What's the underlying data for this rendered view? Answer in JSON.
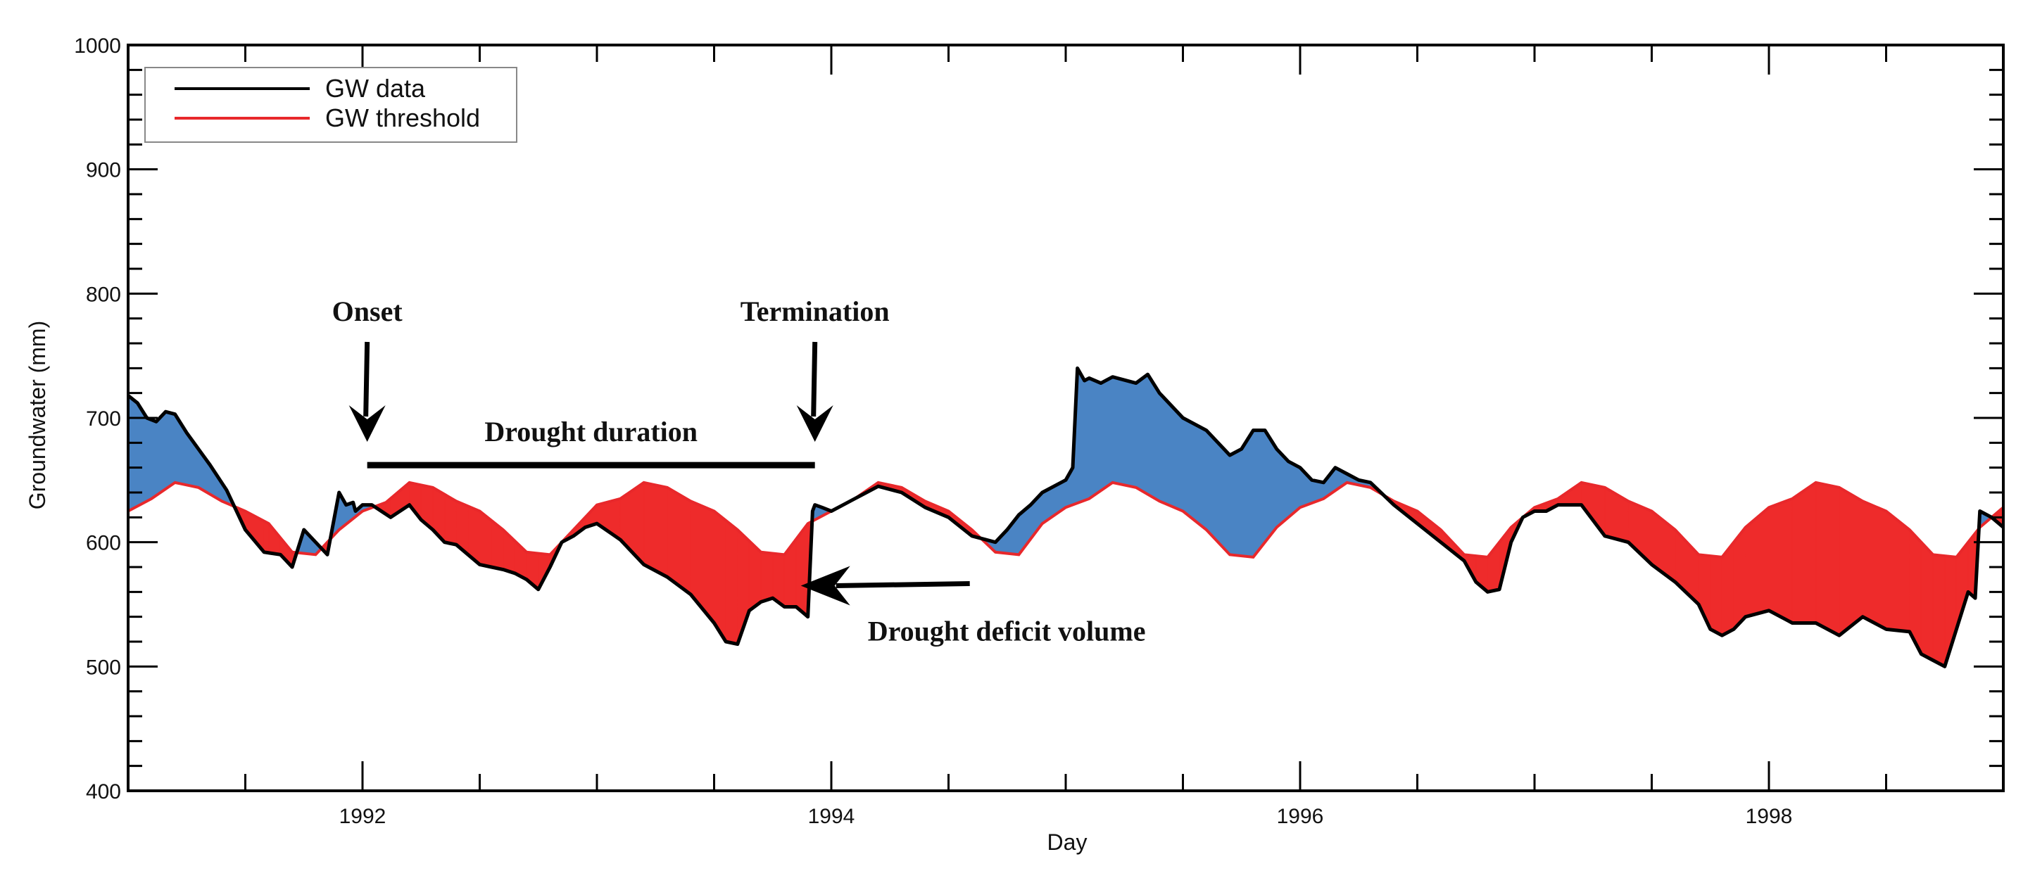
{
  "chart_data": {
    "type": "area",
    "title": "",
    "xlabel": "Day",
    "ylabel": "Groundwater (mm)",
    "xlim": [
      1991.0,
      1999.0
    ],
    "ylim": [
      400,
      1000
    ],
    "yticks": [
      400,
      500,
      600,
      700,
      800,
      900,
      1000
    ],
    "ytick_labels": [
      "400",
      "500",
      "600",
      "700",
      "800",
      "900",
      "1000"
    ],
    "xticks": [
      1992,
      1994,
      1996,
      1998
    ],
    "xtick_labels": [
      "1992",
      "1994",
      "1996",
      "1998"
    ],
    "legend": {
      "position": "top-left",
      "entries": [
        {
          "label": "GW data",
          "color": "#000000"
        },
        {
          "label": "GW threshold",
          "color": "#e8282b"
        }
      ]
    },
    "colors": {
      "data_line": "#000000",
      "threshold_line": "#e8282b",
      "surplus_fill": "#4a84c4",
      "deficit_fill": "#ee2b2b"
    },
    "annotations": {
      "onset": {
        "label": "Onset",
        "x": 1992.02
      },
      "termination": {
        "label": "Termination",
        "x": 1993.93
      },
      "duration": {
        "label": "Drought duration",
        "x_start": 1992.02,
        "x_end": 1993.93,
        "y": 662
      },
      "deficit": {
        "label": "Drought deficit volume",
        "arrow_x": 1993.87,
        "arrow_y": 565
      }
    },
    "series": [
      {
        "name": "GW data",
        "x": [
          1991.0,
          1991.04,
          1991.08,
          1991.12,
          1991.16,
          1991.2,
          1991.25,
          1991.3,
          1991.35,
          1991.42,
          1991.5,
          1991.58,
          1991.65,
          1991.7,
          1991.75,
          1991.8,
          1991.85,
          1991.9,
          1991.93,
          1991.96,
          1991.97,
          1992.0,
          1992.04,
          1992.08,
          1992.12,
          1992.2,
          1992.25,
          1992.3,
          1992.35,
          1992.4,
          1992.45,
          1992.5,
          1992.55,
          1992.6,
          1992.65,
          1992.7,
          1992.75,
          1992.8,
          1992.85,
          1992.9,
          1992.95,
          1993.0,
          1993.1,
          1993.2,
          1993.3,
          1993.4,
          1993.5,
          1993.55,
          1993.6,
          1993.65,
          1993.7,
          1993.75,
          1993.8,
          1993.85,
          1993.9,
          1993.92,
          1993.93,
          1993.96,
          1994.0,
          1994.05,
          1994.1,
          1994.15,
          1994.2,
          1994.3,
          1994.4,
          1994.5,
          1994.6,
          1994.7,
          1994.75,
          1994.8,
          1994.85,
          1994.9,
          1995.0,
          1995.03,
          1995.05,
          1995.08,
          1995.1,
          1995.15,
          1995.2,
          1995.3,
          1995.35,
          1995.4,
          1995.5,
          1995.6,
          1995.7,
          1995.75,
          1995.8,
          1995.85,
          1995.9,
          1995.95,
          1996.0,
          1996.05,
          1996.1,
          1996.15,
          1996.2,
          1996.25,
          1996.3,
          1996.4,
          1996.5,
          1996.6,
          1996.7,
          1996.75,
          1996.8,
          1996.85,
          1996.9,
          1996.95,
          1997.0,
          1997.05,
          1997.1,
          1997.2,
          1997.3,
          1997.4,
          1997.5,
          1997.6,
          1997.7,
          1997.75,
          1997.8,
          1997.85,
          1997.9,
          1998.0,
          1998.1,
          1998.2,
          1998.3,
          1998.4,
          1998.5,
          1998.6,
          1998.65,
          1998.7,
          1998.75,
          1998.8,
          1998.85,
          1998.88,
          1998.9,
          1998.95,
          1999.0
        ],
        "values": [
          718,
          712,
          700,
          697,
          705,
          703,
          688,
          675,
          662,
          642,
          610,
          592,
          590,
          580,
          610,
          600,
          590,
          640,
          630,
          632,
          625,
          630,
          630,
          625,
          620,
          630,
          618,
          610,
          600,
          598,
          590,
          582,
          580,
          578,
          575,
          570,
          562,
          580,
          600,
          605,
          612,
          615,
          602,
          582,
          572,
          558,
          535,
          520,
          518,
          545,
          552,
          555,
          548,
          548,
          540,
          625,
          630,
          628,
          625,
          630,
          635,
          640,
          645,
          640,
          628,
          620,
          605,
          600,
          610,
          622,
          630,
          640,
          650,
          660,
          740,
          730,
          732,
          728,
          733,
          728,
          735,
          720,
          700,
          690,
          670,
          675,
          690,
          690,
          675,
          665,
          660,
          650,
          648,
          660,
          655,
          650,
          648,
          630,
          615,
          600,
          585,
          568,
          560,
          562,
          600,
          620,
          625,
          625,
          630,
          630,
          605,
          600,
          582,
          568,
          550,
          530,
          525,
          530,
          540,
          545,
          535,
          535,
          525,
          540,
          530,
          528,
          510,
          505,
          500,
          530,
          560,
          555,
          625,
          620,
          612
        ]
      },
      {
        "name": "GW threshold",
        "x": [
          1991.0,
          1991.1,
          1991.2,
          1991.3,
          1991.4,
          1991.5,
          1991.6,
          1991.7,
          1991.8,
          1991.9,
          1992.0,
          1992.1,
          1992.2,
          1992.3,
          1992.4,
          1992.5,
          1992.6,
          1992.7,
          1992.8,
          1992.9,
          1993.0,
          1993.1,
          1993.2,
          1993.3,
          1993.4,
          1993.5,
          1993.6,
          1993.7,
          1993.8,
          1993.9,
          1994.0,
          1994.1,
          1994.2,
          1994.3,
          1994.4,
          1994.5,
          1994.6,
          1994.7,
          1994.8,
          1994.9,
          1995.0,
          1995.1,
          1995.2,
          1995.3,
          1995.4,
          1995.5,
          1995.6,
          1995.7,
          1995.8,
          1995.9,
          1996.0,
          1996.1,
          1996.2,
          1996.3,
          1996.4,
          1996.5,
          1996.6,
          1996.7,
          1996.8,
          1996.9,
          1997.0,
          1997.1,
          1997.2,
          1997.3,
          1997.4,
          1997.5,
          1997.6,
          1997.7,
          1997.8,
          1997.9,
          1998.0,
          1998.1,
          1998.2,
          1998.3,
          1998.4,
          1998.5,
          1998.6,
          1998.7,
          1998.8,
          1998.9,
          1999.0
        ],
        "values": [
          625,
          635,
          648,
          644,
          633,
          625,
          615,
          592,
          590,
          610,
          625,
          632,
          648,
          644,
          633,
          625,
          610,
          592,
          590,
          610,
          630,
          635,
          648,
          644,
          633,
          625,
          610,
          592,
          590,
          615,
          625,
          635,
          648,
          644,
          633,
          625,
          610,
          592,
          590,
          615,
          628,
          635,
          648,
          644,
          633,
          625,
          610,
          590,
          588,
          612,
          628,
          635,
          648,
          644,
          633,
          625,
          610,
          590,
          588,
          612,
          628,
          635,
          648,
          644,
          633,
          625,
          610,
          590,
          588,
          612,
          628,
          635,
          648,
          644,
          633,
          625,
          610,
          590,
          588,
          612,
          628
        ]
      }
    ]
  }
}
